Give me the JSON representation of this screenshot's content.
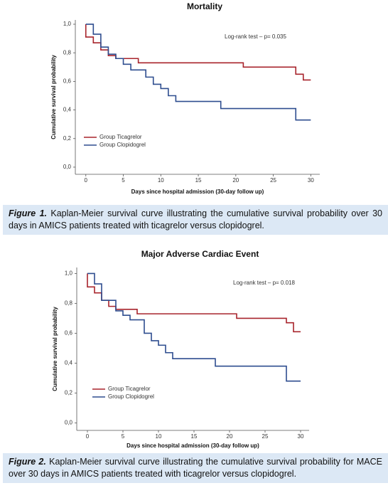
{
  "chart_data": [
    {
      "type": "step",
      "title": "Mortality",
      "x_label": "Days since hospital admission (30-day follow up)",
      "y_label": "Cumulative survival probability",
      "annotation": "Log-rank test – p= 0.035",
      "xlim": [
        -1.4,
        31.2
      ],
      "ylim": [
        -0.05,
        1.03
      ],
      "xticks": [
        0,
        5,
        10,
        15,
        20,
        25,
        30
      ],
      "yticks": [
        {
          "value": 0,
          "label": "0,0"
        },
        {
          "value": 0.2,
          "label": "0,2"
        },
        {
          "value": 0.4,
          "label": "0,4"
        },
        {
          "value": 0.6,
          "label": "0,6"
        },
        {
          "value": 0.8,
          "label": "0,8"
        },
        {
          "value": 1,
          "label": "1,0"
        }
      ],
      "series": [
        {
          "name": "Group Ticagrelor",
          "color": "#a8242c",
          "x": [
            0,
            0,
            1,
            2,
            3,
            4,
            7,
            21,
            28,
            29,
            30
          ],
          "values": [
            1,
            0.91,
            0.87,
            0.82,
            0.78,
            0.76,
            0.73,
            0.7,
            0.65,
            0.61,
            0.61
          ]
        },
        {
          "name": "Group Clopidogrel",
          "color": "#2e4d8f",
          "x": [
            0,
            1,
            2,
            3,
            4,
            5,
            6,
            8,
            9,
            10,
            11,
            12,
            18,
            28,
            30
          ],
          "values": [
            1,
            0.93,
            0.84,
            0.79,
            0.76,
            0.72,
            0.68,
            0.63,
            0.58,
            0.55,
            0.5,
            0.46,
            0.41,
            0.33,
            0.33
          ]
        }
      ]
    },
    {
      "type": "step",
      "title": "Major Adverse Cardiac Event",
      "x_label": "Days since hospital admission (30-day follow up)",
      "y_label": "Cumulative survival probability",
      "annotation": "Log-rank test – p= 0.018",
      "xlim": [
        -1.5,
        31.2
      ],
      "ylim": [
        -0.05,
        1.04
      ],
      "xticks": [
        0,
        5,
        10,
        15,
        20,
        25,
        30
      ],
      "yticks": [
        {
          "value": 0,
          "label": "0,0"
        },
        {
          "value": 0.2,
          "label": "0,2"
        },
        {
          "value": 0.4,
          "label": "0,4"
        },
        {
          "value": 0.6,
          "label": "0,6"
        },
        {
          "value": 0.8,
          "label": "0,8"
        },
        {
          "value": 1,
          "label": "1,0"
        }
      ],
      "series": [
        {
          "name": "Group Ticagrelor",
          "color": "#a8242c",
          "x": [
            0,
            0,
            1,
            2,
            3,
            4,
            7,
            21,
            28,
            29,
            30
          ],
          "values": [
            1,
            0.91,
            0.87,
            0.82,
            0.78,
            0.76,
            0.73,
            0.7,
            0.67,
            0.61,
            0.61
          ]
        },
        {
          "name": "Group Clopidogrel",
          "color": "#2e4d8f",
          "x": [
            0,
            1,
            2,
            4,
            5,
            6,
            8,
            9,
            10,
            11,
            12,
            18,
            28,
            30
          ],
          "values": [
            1,
            0.93,
            0.82,
            0.75,
            0.72,
            0.69,
            0.6,
            0.55,
            0.52,
            0.47,
            0.43,
            0.38,
            0.28,
            0.28
          ]
        }
      ]
    }
  ],
  "captions": [
    {
      "label": "Figure 1.",
      "text": "Kaplan-Meier survival curve illustrating the cumulative survival probability over 30 days in AMICS patients treated with ticagrelor versus clopidogrel."
    },
    {
      "label": "Figure 2.",
      "text": "Kaplan-Meier survival curve illustrating the cumulative survival probability for MACE over 30 days in AMICS patients treated with ticagrelor versus clopidogrel."
    }
  ]
}
